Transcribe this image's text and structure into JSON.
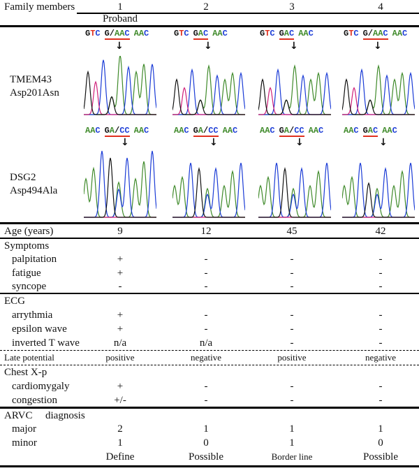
{
  "header": {
    "label": "Family members",
    "members": [
      "1",
      "2",
      "3",
      "4"
    ],
    "proband": "Proband"
  },
  "genes": [
    {
      "name": "TMEM43",
      "variant": "Asp201Asn",
      "sequences": [
        [
          "GTC",
          "G/AAC",
          "AAC"
        ],
        [
          "GTC",
          "GAC",
          "AAC"
        ],
        [
          "GTC",
          "GAC",
          "AAC"
        ],
        [
          "GTC",
          "G/AAC",
          "AAC"
        ]
      ]
    },
    {
      "name": "DSG2",
      "variant": "Asp494Ala",
      "sequences": [
        [
          "AAC",
          "GA/CC",
          "AAC"
        ],
        [
          "AAC",
          "GA/CC",
          "AAC"
        ],
        [
          "AAC",
          "GA/CC",
          "AAC"
        ],
        [
          "AAC",
          "GAC",
          "AAC"
        ]
      ]
    }
  ],
  "base_colors": {
    "G": "#111111",
    "T": "#e0301e",
    "C": "#1a3bd6",
    "A": "#3f8a2a",
    "/": "#111111"
  },
  "arrow": "↓",
  "table": {
    "age": {
      "label": "Age (years)",
      "values": [
        "9",
        "12",
        "45",
        "42"
      ]
    },
    "symptoms": {
      "label": "Symptoms",
      "rows": [
        {
          "label": "palpitation",
          "values": [
            "+",
            "-",
            "-",
            "-"
          ]
        },
        {
          "label": "fatigue",
          "values": [
            "+",
            "-",
            "-",
            "-"
          ]
        },
        {
          "label": "syncope",
          "values": [
            "-",
            "-",
            "-",
            "-"
          ]
        }
      ]
    },
    "ecg": {
      "label": "ECG",
      "rows": [
        {
          "label": "arrythmia",
          "values": [
            "+",
            "-",
            "-",
            "-"
          ]
        },
        {
          "label": "epsilon wave",
          "values": [
            "+",
            "-",
            "-",
            "-"
          ]
        },
        {
          "label": "inverted T wave",
          "values": [
            "n/a",
            "n/a",
            "-",
            "-"
          ]
        }
      ]
    },
    "late_potential": {
      "label": "Late potential",
      "values": [
        "positive",
        "negative",
        "positive",
        "negative"
      ]
    },
    "chest": {
      "label": "Chest X-p",
      "rows": [
        {
          "label": "cardiomygaly",
          "values": [
            "+",
            "-",
            "-",
            "-"
          ]
        },
        {
          "label": "congestion",
          "values": [
            "+/-",
            "-",
            "-",
            "-"
          ]
        }
      ]
    },
    "arvc": {
      "label": "ARVC",
      "label2": "diagnosis",
      "rows": [
        {
          "label": "major",
          "values": [
            "2",
            "1",
            "1",
            "1"
          ]
        },
        {
          "label": "minor",
          "values": [
            "1",
            "0",
            "1",
            "0"
          ]
        }
      ],
      "result": [
        "Define",
        "Possible",
        "Border line",
        "Possible"
      ]
    }
  }
}
